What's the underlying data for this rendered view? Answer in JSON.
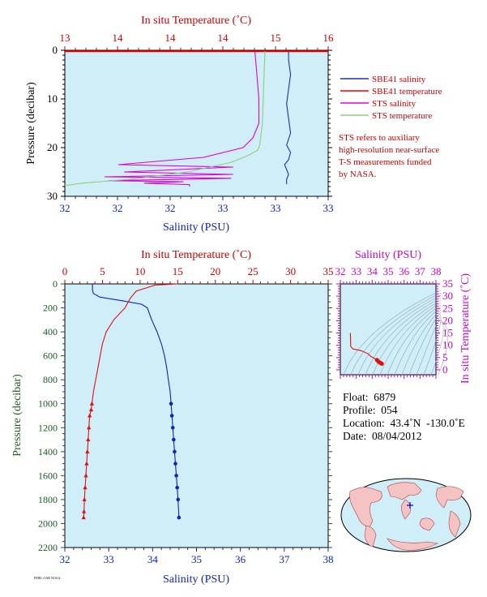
{
  "chart_data": [
    {
      "type": "line",
      "panel": "near-surface",
      "top_axis_label": "In situ Temperature (˚C)",
      "top_axis_ticks": [
        "13",
        "14",
        "14",
        "14",
        "15",
        "16"
      ],
      "bottom_axis_label": "Salinity (PSU)",
      "bottom_axis_ticks": [
        "32",
        "32",
        "32",
        "33",
        "33",
        "33"
      ],
      "ylabel": "Pressure (decibar)",
      "y_ticks": [
        "0",
        "10",
        "20",
        "30"
      ],
      "ylim": [
        30,
        0
      ],
      "salinity_range": [
        32.0,
        33.33
      ],
      "temperature_range": [
        13.0,
        16.0
      ],
      "series": [
        {
          "name": "SBE41 salinity",
          "color": "#1a33b3",
          "x": [
            33.13,
            33.13,
            33.14,
            33.13,
            33.12,
            33.13,
            33.14,
            33.12,
            33.14,
            33.13,
            33.11,
            33.12,
            33.13,
            33.12,
            33.12
          ],
          "y": [
            0.2,
            2,
            5,
            8,
            11,
            14,
            17,
            19.5,
            21,
            22.5,
            23.5,
            24.5,
            25.5,
            26.5,
            27.5
          ]
        },
        {
          "name": "SBE41 temperature",
          "color": "#ee0000",
          "x": [
            13.0,
            16.0
          ],
          "y": [
            0.2,
            0.2
          ]
        },
        {
          "name": "STS salinity",
          "color": "#dd00dd",
          "x": [
            32.96,
            32.97,
            32.98,
            32.98,
            32.95,
            32.9,
            32.7,
            32.27,
            32.85,
            32.3,
            32.85,
            32.2,
            32.84,
            32.22,
            32.6,
            32.4,
            32.63,
            32.63
          ],
          "y": [
            0.2,
            5,
            10,
            15,
            18,
            20,
            22,
            23.5,
            24,
            25,
            25.5,
            26,
            26.3,
            26.8,
            27,
            27.3,
            27.6,
            28
          ]
        },
        {
          "name": "STS temperature",
          "color": "#8fce7a",
          "x": [
            15.28,
            15.27,
            15.25,
            15.22,
            15.2,
            15.1,
            14.9,
            14.4,
            13.8,
            13.2,
            13.0
          ],
          "y": [
            0.2,
            5,
            15,
            19.5,
            20.5,
            21.5,
            23,
            25,
            26.4,
            27.3,
            27.8
          ]
        }
      ],
      "legend_position": "right",
      "note": [
        "STS refers to auxiliary",
        "high-resolution near-surface",
        "T-S measurements funded",
        "by NASA."
      ]
    },
    {
      "type": "line",
      "panel": "full-profile",
      "top_axis_label": "In situ Temperature (˚C)",
      "top_axis_ticks": [
        "0",
        "5",
        "10",
        "15",
        "20",
        "25",
        "30",
        "35"
      ],
      "bottom_axis_label": "Salinity (PSU)",
      "bottom_axis_ticks": [
        "32",
        "33",
        "34",
        "35",
        "36",
        "37",
        "38"
      ],
      "ylabel": "Pressure (decibar)",
      "y_ticks": [
        "0",
        "200",
        "400",
        "600",
        "800",
        "1000",
        "1200",
        "1400",
        "1600",
        "1800",
        "2000",
        "2200"
      ],
      "ylim": [
        2200,
        0
      ],
      "salinity_range": [
        32,
        38
      ],
      "temperature_range": [
        0,
        35
      ],
      "series": [
        {
          "name": "Salinity",
          "color": "#0b24c0",
          "x": [
            32.63,
            32.63,
            32.65,
            32.8,
            33.3,
            33.75,
            33.88,
            33.98,
            34.1,
            34.2,
            34.27,
            34.32,
            34.36,
            34.4,
            34.42,
            34.44,
            34.46,
            34.48,
            34.5,
            34.52,
            34.54,
            34.56,
            34.58,
            34.6
          ],
          "y": [
            0,
            50,
            80,
            110,
            140,
            170,
            200,
            300,
            400,
            500,
            600,
            700,
            800,
            900,
            1000,
            1100,
            1200,
            1300,
            1400,
            1500,
            1600,
            1700,
            1800,
            1950
          ]
        },
        {
          "name": "Temperature",
          "color": "#dd1111",
          "x": [
            15.0,
            12.0,
            9.5,
            8.7,
            8.0,
            6.5,
            5.5,
            5.0,
            4.7,
            4.4,
            4.1,
            3.8,
            3.6,
            3.5,
            3.3,
            3.2,
            3.1,
            3.0,
            2.9,
            2.8,
            2.7,
            2.6,
            2.55,
            2.5
          ],
          "y": [
            0,
            10,
            60,
            120,
            200,
            300,
            400,
            500,
            600,
            700,
            800,
            900,
            1000,
            1050,
            1100,
            1200,
            1300,
            1400,
            1500,
            1600,
            1700,
            1800,
            1900,
            1950
          ]
        }
      ]
    },
    {
      "type": "scatter",
      "panel": "t-s-diagram",
      "top_axis_label": "Salinity (PSU)",
      "top_axis_ticks": [
        "32",
        "33",
        "34",
        "35",
        "36",
        "37",
        "38"
      ],
      "right_axis_label": "In situ Temperature (˚C)",
      "right_axis_ticks": [
        "0",
        "5",
        "10",
        "15",
        "20",
        "25",
        "30",
        "35"
      ],
      "xlim": [
        32,
        38
      ],
      "ylim": [
        -2,
        35
      ],
      "series": [
        {
          "name": "Profile",
          "color": "#dd1111",
          "x": [
            32.63,
            32.65,
            32.8,
            33.3,
            33.75,
            33.9,
            34.1,
            34.3,
            34.4,
            34.5,
            34.6
          ],
          "y": [
            15,
            9.5,
            8.5,
            7.8,
            6.5,
            5.5,
            4.8,
            4.0,
            3.3,
            2.9,
            2.5
          ]
        }
      ]
    }
  ],
  "info": {
    "float": "Float:  6879",
    "profile": "Profile:  054",
    "location": "Location:  43.4˚N  -130.0˚E",
    "date": "Date:  08/04/2012"
  },
  "footer_text": "PMEL OAR NOAA"
}
